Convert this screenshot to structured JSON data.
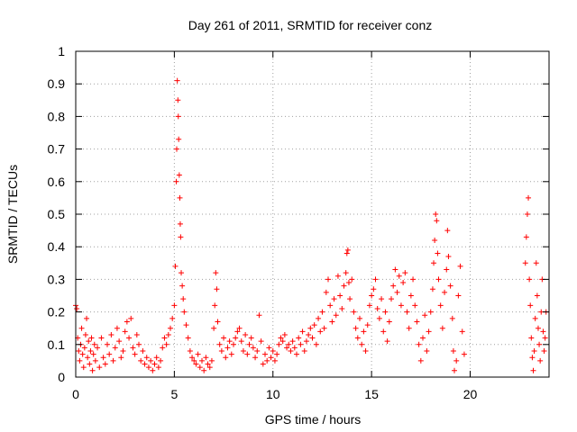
{
  "chart_data": {
    "type": "scatter",
    "title": "Day 261 of 2011, SRMTID for receiver conz",
    "xlabel": "GPS time / hours",
    "ylabel": "SRMTID / TECUs",
    "xlim": [
      0,
      24
    ],
    "ylim": [
      0,
      1
    ],
    "xticks": [
      0,
      5,
      10,
      15,
      20
    ],
    "yticks": [
      0,
      0.1,
      0.2,
      0.3,
      0.4,
      0.5,
      0.6,
      0.7,
      0.8,
      0.9,
      1
    ],
    "xtick_labels": [
      "0",
      "5",
      "10",
      "15",
      "20"
    ],
    "ytick_labels": [
      "0",
      "0.1",
      "0.2",
      "0.3",
      "0.4",
      "0.5",
      "0.6",
      "0.7",
      "0.8",
      "0.9",
      "1"
    ],
    "grid": true,
    "marker": "plus",
    "color": "#ff0000",
    "series": [
      {
        "name": "SRMTID",
        "points": [
          [
            0.0,
            0.22
          ],
          [
            0.05,
            0.21
          ],
          [
            0.1,
            0.12
          ],
          [
            0.15,
            0.08
          ],
          [
            0.2,
            0.05
          ],
          [
            0.25,
            0.1
          ],
          [
            0.3,
            0.15
          ],
          [
            0.35,
            0.07
          ],
          [
            0.4,
            0.03
          ],
          [
            0.45,
            0.09
          ],
          [
            0.5,
            0.13
          ],
          [
            0.55,
            0.18
          ],
          [
            0.6,
            0.06
          ],
          [
            0.65,
            0.11
          ],
          [
            0.7,
            0.04
          ],
          [
            0.75,
            0.08
          ],
          [
            0.8,
            0.12
          ],
          [
            0.85,
            0.02
          ],
          [
            0.9,
            0.07
          ],
          [
            0.95,
            0.1
          ],
          [
            1.0,
            0.05
          ],
          [
            1.1,
            0.09
          ],
          [
            1.2,
            0.03
          ],
          [
            1.3,
            0.12
          ],
          [
            1.4,
            0.06
          ],
          [
            1.5,
            0.04
          ],
          [
            1.6,
            0.1
          ],
          [
            1.7,
            0.07
          ],
          [
            1.8,
            0.13
          ],
          [
            1.9,
            0.05
          ],
          [
            2.0,
            0.09
          ],
          [
            2.1,
            0.15
          ],
          [
            2.2,
            0.11
          ],
          [
            2.3,
            0.06
          ],
          [
            2.4,
            0.08
          ],
          [
            2.5,
            0.14
          ],
          [
            2.6,
            0.17
          ],
          [
            2.7,
            0.12
          ],
          [
            2.8,
            0.18
          ],
          [
            2.9,
            0.09
          ],
          [
            3.0,
            0.07
          ],
          [
            3.1,
            0.13
          ],
          [
            3.2,
            0.1
          ],
          [
            3.3,
            0.05
          ],
          [
            3.4,
            0.08
          ],
          [
            3.5,
            0.04
          ],
          [
            3.6,
            0.06
          ],
          [
            3.7,
            0.03
          ],
          [
            3.8,
            0.05
          ],
          [
            3.9,
            0.02
          ],
          [
            4.0,
            0.04
          ],
          [
            4.1,
            0.06
          ],
          [
            4.2,
            0.03
          ],
          [
            4.3,
            0.05
          ],
          [
            4.4,
            0.09
          ],
          [
            4.5,
            0.12
          ],
          [
            4.6,
            0.1
          ],
          [
            4.7,
            0.13
          ],
          [
            4.8,
            0.15
          ],
          [
            4.9,
            0.18
          ],
          [
            5.0,
            0.22
          ],
          [
            5.05,
            0.34
          ],
          [
            5.1,
            0.6
          ],
          [
            5.12,
            0.7
          ],
          [
            5.15,
            0.91
          ],
          [
            5.18,
            0.85
          ],
          [
            5.2,
            0.8
          ],
          [
            5.22,
            0.73
          ],
          [
            5.25,
            0.62
          ],
          [
            5.28,
            0.55
          ],
          [
            5.3,
            0.47
          ],
          [
            5.32,
            0.43
          ],
          [
            5.35,
            0.32
          ],
          [
            5.4,
            0.28
          ],
          [
            5.45,
            0.24
          ],
          [
            5.5,
            0.2
          ],
          [
            5.6,
            0.16
          ],
          [
            5.7,
            0.12
          ],
          [
            5.8,
            0.08
          ],
          [
            5.9,
            0.06
          ],
          [
            6.0,
            0.05
          ],
          [
            6.1,
            0.04
          ],
          [
            6.2,
            0.07
          ],
          [
            6.3,
            0.03
          ],
          [
            6.4,
            0.05
          ],
          [
            6.5,
            0.02
          ],
          [
            6.6,
            0.06
          ],
          [
            6.7,
            0.04
          ],
          [
            6.8,
            0.03
          ],
          [
            6.9,
            0.05
          ],
          [
            7.0,
            0.15
          ],
          [
            7.05,
            0.22
          ],
          [
            7.1,
            0.32
          ],
          [
            7.15,
            0.27
          ],
          [
            7.2,
            0.17
          ],
          [
            7.3,
            0.1
          ],
          [
            7.4,
            0.08
          ],
          [
            7.5,
            0.12
          ],
          [
            7.6,
            0.06
          ],
          [
            7.7,
            0.09
          ],
          [
            7.8,
            0.11
          ],
          [
            7.9,
            0.07
          ],
          [
            8.0,
            0.1
          ],
          [
            8.1,
            0.12
          ],
          [
            8.2,
            0.14
          ],
          [
            8.3,
            0.15
          ],
          [
            8.4,
            0.11
          ],
          [
            8.5,
            0.08
          ],
          [
            8.6,
            0.13
          ],
          [
            8.7,
            0.07
          ],
          [
            8.8,
            0.1
          ],
          [
            8.9,
            0.12
          ],
          [
            9.0,
            0.09
          ],
          [
            9.1,
            0.06
          ],
          [
            9.2,
            0.08
          ],
          [
            9.3,
            0.19
          ],
          [
            9.4,
            0.11
          ],
          [
            9.5,
            0.04
          ],
          [
            9.6,
            0.07
          ],
          [
            9.7,
            0.05
          ],
          [
            9.8,
            0.09
          ],
          [
            9.9,
            0.06
          ],
          [
            10.0,
            0.08
          ],
          [
            10.1,
            0.05
          ],
          [
            10.2,
            0.07
          ],
          [
            10.3,
            0.1
          ],
          [
            10.4,
            0.12
          ],
          [
            10.5,
            0.11
          ],
          [
            10.6,
            0.13
          ],
          [
            10.7,
            0.09
          ],
          [
            10.8,
            0.1
          ],
          [
            10.9,
            0.08
          ],
          [
            11.0,
            0.11
          ],
          [
            11.1,
            0.09
          ],
          [
            11.2,
            0.07
          ],
          [
            11.3,
            0.12
          ],
          [
            11.4,
            0.1
          ],
          [
            11.5,
            0.14
          ],
          [
            11.6,
            0.08
          ],
          [
            11.7,
            0.11
          ],
          [
            11.8,
            0.13
          ],
          [
            11.9,
            0.15
          ],
          [
            12.0,
            0.12
          ],
          [
            12.1,
            0.16
          ],
          [
            12.2,
            0.1
          ],
          [
            12.3,
            0.18
          ],
          [
            12.4,
            0.14
          ],
          [
            12.5,
            0.2
          ],
          [
            12.6,
            0.15
          ],
          [
            12.7,
            0.26
          ],
          [
            12.8,
            0.3
          ],
          [
            12.9,
            0.22
          ],
          [
            13.0,
            0.17
          ],
          [
            13.1,
            0.24
          ],
          [
            13.2,
            0.19
          ],
          [
            13.3,
            0.31
          ],
          [
            13.4,
            0.25
          ],
          [
            13.5,
            0.21
          ],
          [
            13.6,
            0.28
          ],
          [
            13.7,
            0.32
          ],
          [
            13.75,
            0.38
          ],
          [
            13.8,
            0.39
          ],
          [
            13.85,
            0.29
          ],
          [
            13.9,
            0.24
          ],
          [
            14.0,
            0.3
          ],
          [
            14.1,
            0.2
          ],
          [
            14.2,
            0.15
          ],
          [
            14.3,
            0.12
          ],
          [
            14.4,
            0.18
          ],
          [
            14.5,
            0.1
          ],
          [
            14.6,
            0.14
          ],
          [
            14.7,
            0.08
          ],
          [
            14.8,
            0.16
          ],
          [
            14.9,
            0.22
          ],
          [
            15.0,
            0.25
          ],
          [
            15.1,
            0.27
          ],
          [
            15.2,
            0.3
          ],
          [
            15.3,
            0.21
          ],
          [
            15.4,
            0.18
          ],
          [
            15.5,
            0.24
          ],
          [
            15.6,
            0.14
          ],
          [
            15.7,
            0.2
          ],
          [
            15.8,
            0.11
          ],
          [
            15.9,
            0.17
          ],
          [
            16.0,
            0.24
          ],
          [
            16.1,
            0.28
          ],
          [
            16.2,
            0.33
          ],
          [
            16.3,
            0.26
          ],
          [
            16.4,
            0.31
          ],
          [
            16.5,
            0.22
          ],
          [
            16.6,
            0.29
          ],
          [
            16.7,
            0.32
          ],
          [
            16.8,
            0.2
          ],
          [
            16.9,
            0.15
          ],
          [
            17.0,
            0.25
          ],
          [
            17.1,
            0.3
          ],
          [
            17.2,
            0.22
          ],
          [
            17.3,
            0.17
          ],
          [
            17.4,
            0.1
          ],
          [
            17.5,
            0.05
          ],
          [
            17.6,
            0.12
          ],
          [
            17.7,
            0.19
          ],
          [
            17.8,
            0.08
          ],
          [
            17.9,
            0.14
          ],
          [
            18.0,
            0.2
          ],
          [
            18.1,
            0.27
          ],
          [
            18.15,
            0.35
          ],
          [
            18.2,
            0.42
          ],
          [
            18.25,
            0.5
          ],
          [
            18.3,
            0.48
          ],
          [
            18.35,
            0.38
          ],
          [
            18.4,
            0.3
          ],
          [
            18.5,
            0.22
          ],
          [
            18.6,
            0.15
          ],
          [
            18.7,
            0.26
          ],
          [
            18.8,
            0.33
          ],
          [
            18.85,
            0.45
          ],
          [
            18.9,
            0.37
          ],
          [
            19.0,
            0.28
          ],
          [
            19.1,
            0.18
          ],
          [
            19.15,
            0.08
          ],
          [
            19.2,
            0.02
          ],
          [
            19.3,
            0.05
          ],
          [
            19.4,
            0.25
          ],
          [
            19.5,
            0.34
          ],
          [
            19.6,
            0.14
          ],
          [
            19.7,
            0.07
          ],
          [
            22.8,
            0.35
          ],
          [
            22.85,
            0.43
          ],
          [
            22.9,
            0.5
          ],
          [
            22.95,
            0.55
          ],
          [
            23.0,
            0.3
          ],
          [
            23.05,
            0.22
          ],
          [
            23.1,
            0.12
          ],
          [
            23.15,
            0.06
          ],
          [
            23.2,
            0.02
          ],
          [
            23.25,
            0.08
          ],
          [
            23.3,
            0.18
          ],
          [
            23.35,
            0.35
          ],
          [
            23.4,
            0.25
          ],
          [
            23.45,
            0.15
          ],
          [
            23.5,
            0.1
          ],
          [
            23.55,
            0.05
          ],
          [
            23.6,
            0.2
          ],
          [
            23.65,
            0.3
          ],
          [
            23.7,
            0.14
          ],
          [
            23.75,
            0.08
          ],
          [
            23.8,
            0.12
          ],
          [
            23.85,
            0.2
          ]
        ]
      }
    ]
  }
}
